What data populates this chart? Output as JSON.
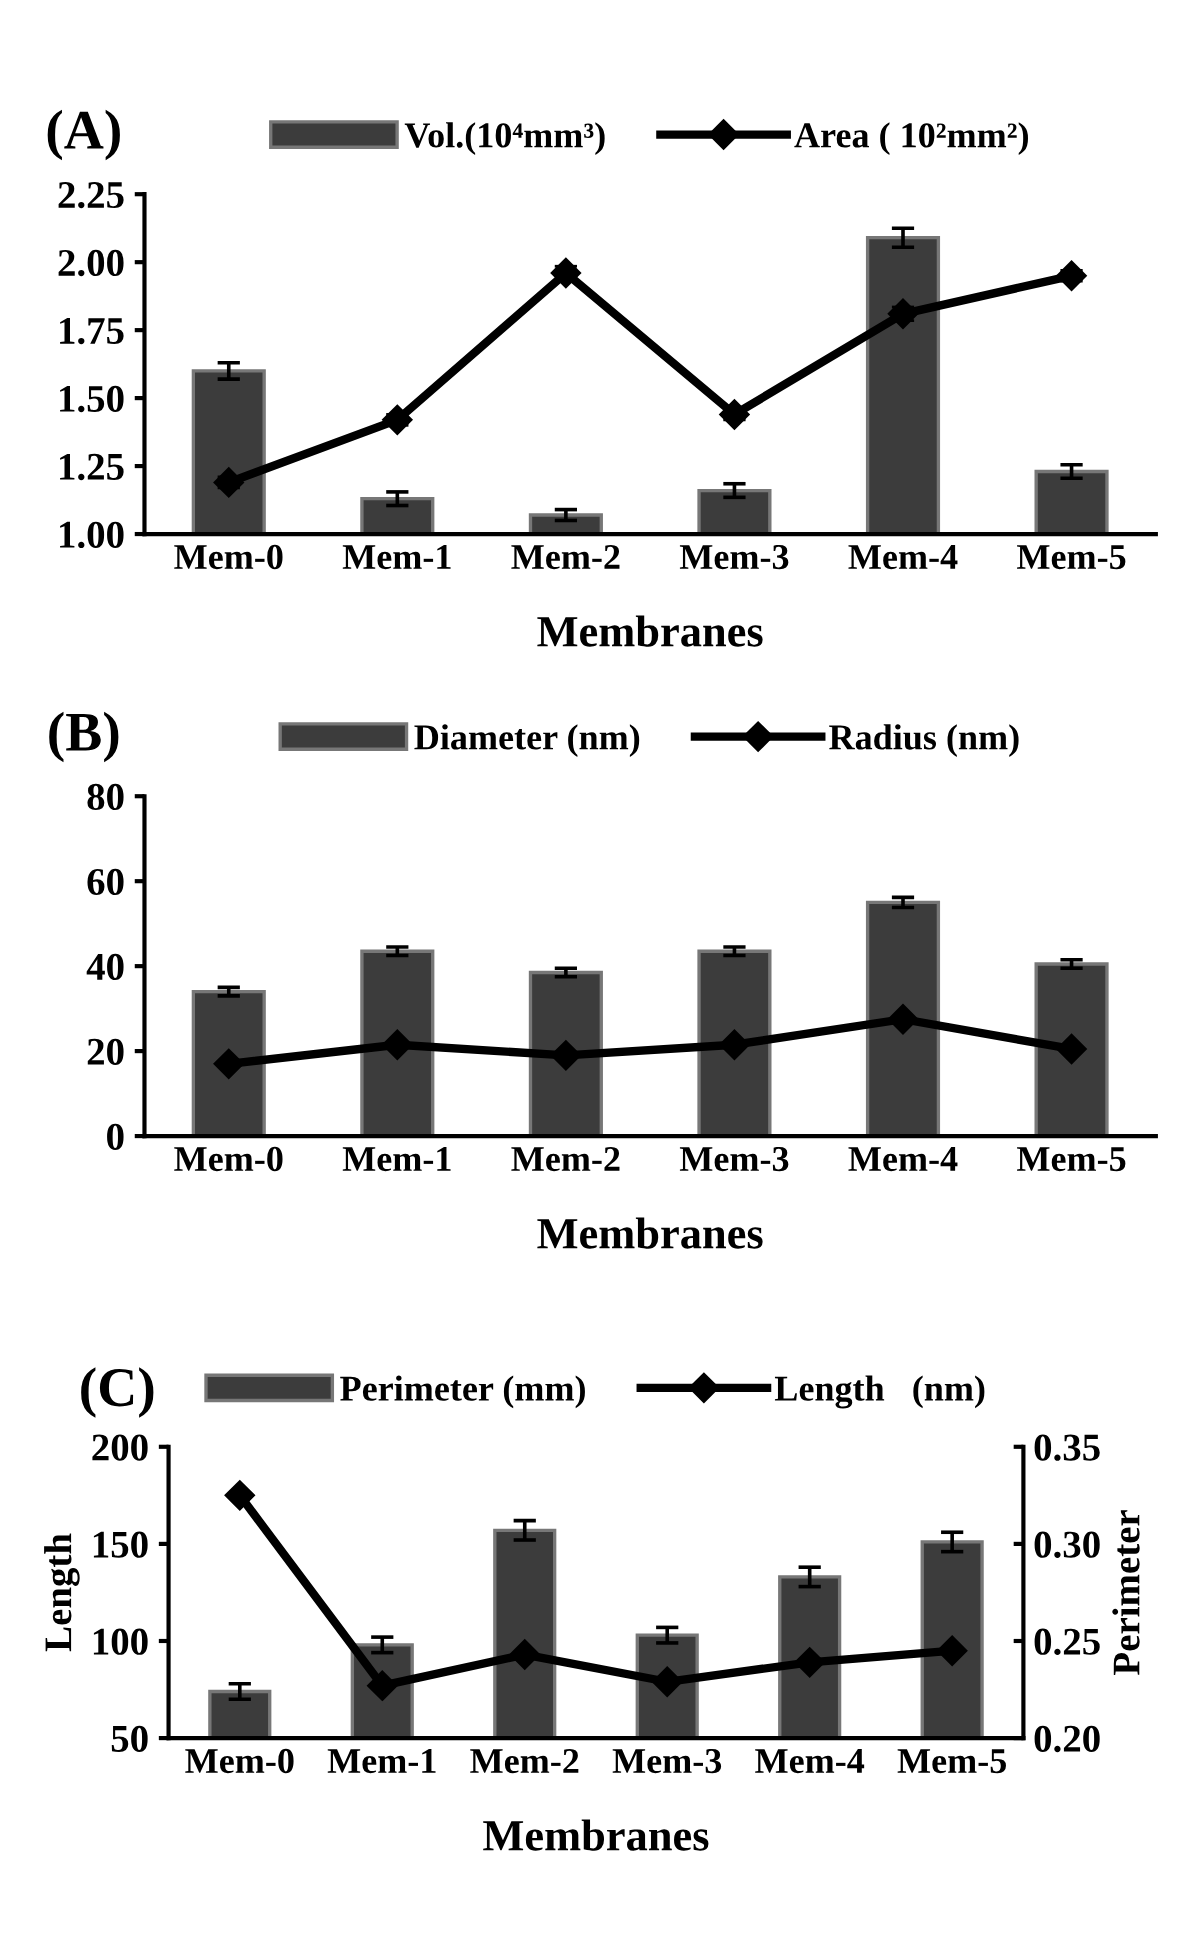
{
  "chart_data": [
    {
      "type": "bar",
      "title": "(A)",
      "xlabel": "Membranes",
      "categories": [
        "Mem-0",
        "Mem-1",
        "Mem-2",
        "Mem-3",
        "Mem-4",
        "Mem-5"
      ],
      "ylim": [
        1.0,
        2.25
      ],
      "yticks": [
        {
          "value": 1.0,
          "label": "1.00"
        },
        {
          "value": 1.25,
          "label": "1.25"
        },
        {
          "value": 1.5,
          "label": "1.50"
        },
        {
          "value": 1.75,
          "label": "1.75"
        },
        {
          "value": 2.0,
          "label": "2.00"
        },
        {
          "value": 2.25,
          "label": "2.25"
        }
      ],
      "legend": "top",
      "grid": false,
      "series": [
        {
          "name": "Vol.(10⁴mm³)",
          "color": "#3c3c3c",
          "values": [
            1.6,
            1.13,
            1.07,
            1.16,
            2.09,
            1.23
          ],
          "errors": [
            0.03,
            0.025,
            0.02,
            0.025,
            0.035,
            0.025
          ]
        },
        {
          "name": "Area ( 10²mm²)",
          "type": "line",
          "color": "#000000",
          "marker": "diamond",
          "values": [
            1.19,
            1.42,
            1.96,
            1.44,
            1.81,
            1.95
          ],
          "errors": [
            0.02,
            0.02,
            0.025,
            0.02,
            0.025,
            0.02
          ]
        }
      ]
    },
    {
      "type": "bar",
      "title": "(B)",
      "xlabel": "Membranes",
      "categories": [
        "Mem-0",
        "Mem-1",
        "Mem-2",
        "Mem-3",
        "Mem-4",
        "Mem-5"
      ],
      "ylim": [
        0,
        80
      ],
      "yticks": [
        0,
        20,
        40,
        60,
        80
      ],
      "legend": "top",
      "grid": false,
      "series": [
        {
          "name": "Diameter (nm)",
          "color": "#3c3c3c",
          "values": [
            34,
            43.5,
            38.5,
            43.5,
            55,
            40.5
          ],
          "errors": [
            1,
            1,
            1,
            1,
            1.2,
            1
          ]
        },
        {
          "name": "Radius (nm)",
          "type": "line",
          "color": "#000000",
          "marker": "diamond",
          "values": [
            17,
            21.5,
            19,
            21.5,
            27.5,
            20.5
          ]
        }
      ]
    },
    {
      "type": "bar",
      "title": "(C)",
      "xlabel": "Membranes",
      "ylabel": "Length",
      "y2label": "Perimeter",
      "categories": [
        "Mem-0",
        "Mem-1",
        "Mem-2",
        "Mem-3",
        "Mem-4",
        "Mem-5"
      ],
      "ylim": [
        50,
        200
      ],
      "yticks": [
        50,
        100,
        150,
        200
      ],
      "y2lim": [
        0.2,
        0.35
      ],
      "y2ticks": [
        {
          "value": 0.2,
          "label": "0.20"
        },
        {
          "value": 0.25,
          "label": "0.25"
        },
        {
          "value": 0.3,
          "label": "0.30"
        },
        {
          "value": 0.35,
          "label": "0.35"
        }
      ],
      "legend": "top",
      "grid": false,
      "series": [
        {
          "name": "Perimeter (mm)",
          "axis": "y2",
          "color": "#3c3c3c",
          "values": [
            0.224,
            0.248,
            0.307,
            0.253,
            0.283,
            0.301
          ],
          "errors": [
            0.004,
            0.004,
            0.005,
            0.004,
            0.005,
            0.005
          ]
        },
        {
          "name": "Length   (nm)",
          "type": "line",
          "color": "#000000",
          "marker": "diamond",
          "values": [
            175,
            77,
            93,
            79,
            89,
            95
          ]
        }
      ]
    }
  ]
}
